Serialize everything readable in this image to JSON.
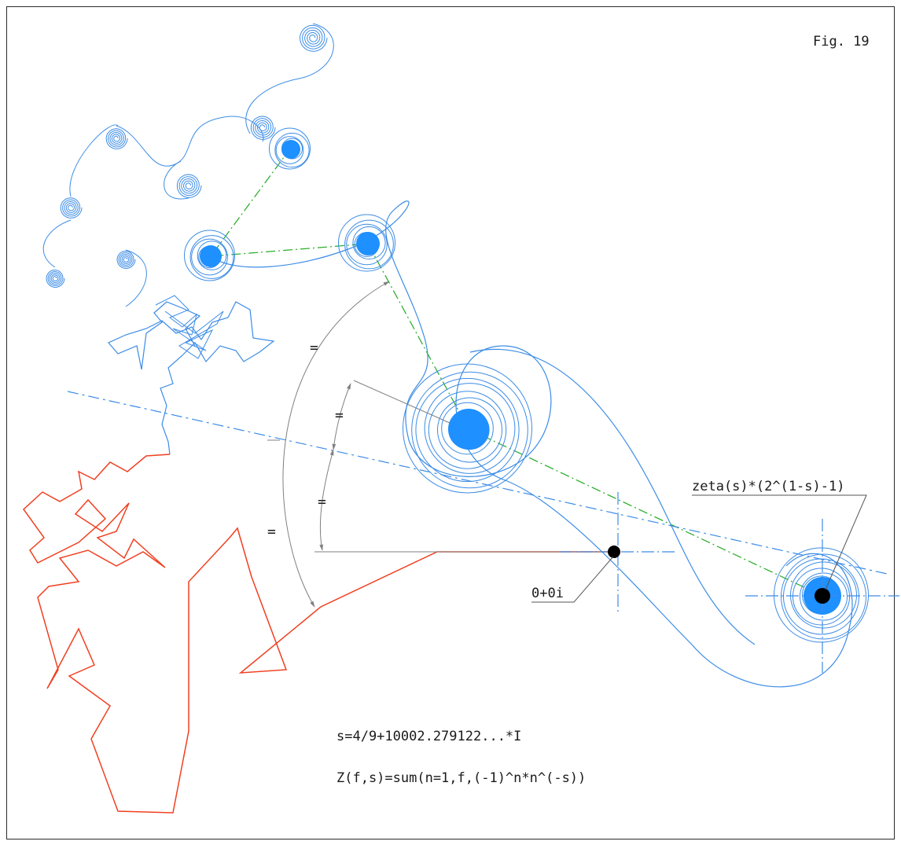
{
  "figure_label": "Fig. 19",
  "annotations": {
    "limit_label": "zeta(s)*(2^(1-s)-1)",
    "origin_label": "0+0i",
    "equal_mark": "="
  },
  "formulas": {
    "s_value": "s=4/9+10002.279122...*I",
    "partial_sum": "Z(f,s)=sum(n=1,f,(-1)^n*n^(-s))"
  },
  "colors": {
    "spiral_path": "#3c8ce6",
    "fill_dot": "#1e90ff",
    "green_guides": "#22aa22",
    "red_path": "#f04020",
    "dimension_lines": "#808080",
    "text": "#1a1a1a",
    "origin_point": "#000000"
  }
}
